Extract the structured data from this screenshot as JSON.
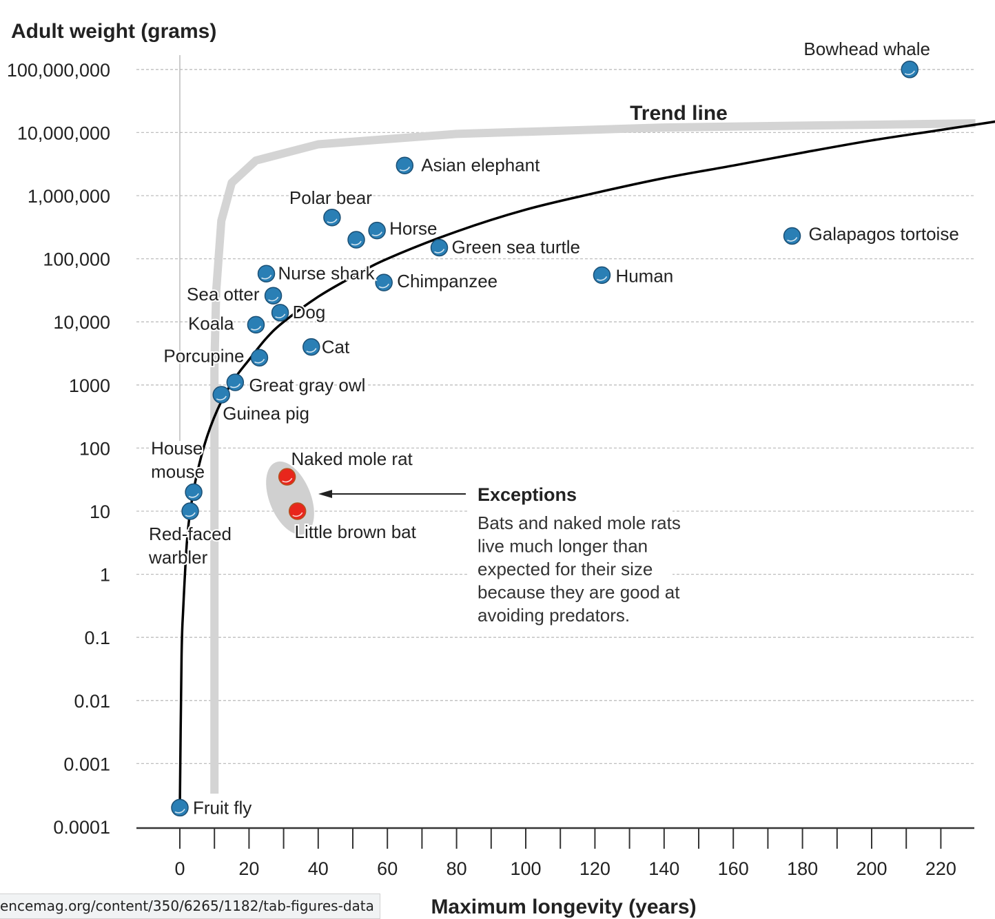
{
  "chart_data": {
    "type": "scatter",
    "ylabel": "Adult weight (grams)",
    "xlabel": "Maximum longevity (years)",
    "x_ticks": [
      0,
      20,
      40,
      60,
      80,
      100,
      120,
      140,
      160,
      180,
      200,
      220
    ],
    "xlim": [
      0,
      230
    ],
    "y_scale": "log",
    "ylim": [
      0.0001,
      100000000
    ],
    "y_ticks": [
      {
        "value": 0.0001,
        "label": "0.0001"
      },
      {
        "value": 0.001,
        "label": "0.001"
      },
      {
        "value": 0.01,
        "label": "0.01"
      },
      {
        "value": 0.1,
        "label": "0.1"
      },
      {
        "value": 1,
        "label": "1"
      },
      {
        "value": 10,
        "label": "10"
      },
      {
        "value": 100,
        "label": "100"
      },
      {
        "value": 1000,
        "label": "1000"
      },
      {
        "value": 10000,
        "label": "10,000"
      },
      {
        "value": 100000,
        "label": "100,000"
      },
      {
        "value": 1000000,
        "label": "1,000,000"
      },
      {
        "value": 10000000,
        "label": "10,000,000"
      },
      {
        "value": 100000000,
        "label": "100,000,000"
      }
    ],
    "grid": "horizontal-dashed",
    "series": [
      {
        "color": "#2a7fb5",
        "points": [
          {
            "label": "Fruit fly",
            "x": 0,
            "y": 0.0002
          },
          {
            "label": "Red-faced warbler",
            "x": 3,
            "y": 10
          },
          {
            "label": "House mouse",
            "x": 4,
            "y": 20
          },
          {
            "label": "Guinea pig",
            "x": 12,
            "y": 700
          },
          {
            "label": "Great gray owl",
            "x": 16,
            "y": 1100
          },
          {
            "label": "Porcupine",
            "x": 23,
            "y": 2700
          },
          {
            "label": "Koala",
            "x": 22,
            "y": 9000
          },
          {
            "label": "Sea otter",
            "x": 27,
            "y": 26000
          },
          {
            "label": "Dog",
            "x": 29,
            "y": 14000
          },
          {
            "label": "Nurse shark",
            "x": 25,
            "y": 58000
          },
          {
            "label": "Cat",
            "x": 38,
            "y": 4000
          },
          {
            "label": "Polar bear",
            "x": 44,
            "y": 450000
          },
          {
            "label": "Horse",
            "x": 57,
            "y": 280000
          },
          {
            "label": "",
            "x": 51,
            "y": 200000
          },
          {
            "label": "Chimpanzee",
            "x": 59,
            "y": 42000
          },
          {
            "label": "Green sea turtle",
            "x": 75,
            "y": 150000
          },
          {
            "label": "Asian elephant",
            "x": 65,
            "y": 3000000
          },
          {
            "label": "Human",
            "x": 122,
            "y": 55000
          },
          {
            "label": "Galapagos tortoise",
            "x": 177,
            "y": 230000
          },
          {
            "label": "Bowhead whale",
            "x": 211,
            "y": 100000000
          }
        ]
      },
      {
        "color": "#e8261c",
        "points": [
          {
            "label": "Naked mole rat",
            "x": 31,
            "y": 35
          },
          {
            "label": "Little brown bat",
            "x": 34,
            "y": 10
          }
        ]
      }
    ],
    "annotations": {
      "trend_line_label": "Trend line",
      "exceptions_title": "Exceptions",
      "exceptions_text": [
        "Bats and naked mole rats",
        "live much longer than",
        "expected for their size",
        "because they are good at",
        "avoiding predators."
      ]
    },
    "trend_line_points": [
      [
        0,
        0.0002
      ],
      [
        0.5,
        0.05
      ],
      [
        1,
        0.3
      ],
      [
        2,
        3
      ],
      [
        3,
        10
      ],
      [
        5,
        40
      ],
      [
        8,
        160
      ],
      [
        12,
        550
      ],
      [
        16,
        1300
      ],
      [
        20,
        2500
      ],
      [
        25,
        5500
      ],
      [
        30,
        10000
      ],
      [
        40,
        25000
      ],
      [
        50,
        52000
      ],
      [
        60,
        100000
      ],
      [
        80,
        270000
      ],
      [
        100,
        600000
      ],
      [
        120,
        1100000
      ],
      [
        140,
        1900000
      ],
      [
        160,
        3000000
      ],
      [
        180,
        4800000
      ],
      [
        200,
        7500000
      ],
      [
        220,
        11000000
      ],
      [
        236,
        15000000
      ]
    ],
    "gray_guide_points": [
      [
        10,
        0.0002
      ],
      [
        10,
        50
      ],
      [
        10,
        2000
      ],
      [
        10.5,
        30000
      ],
      [
        12,
        400000
      ],
      [
        15,
        1600000
      ],
      [
        22,
        3600000
      ],
      [
        40,
        6500000
      ],
      [
        80,
        9500000
      ],
      [
        140,
        12000000
      ],
      [
        230,
        14000000
      ]
    ]
  },
  "status_url": "encemag.org/content/350/6265/1182/tab-figures-data",
  "colors": {
    "point_blue": "#2a7fb5",
    "point_red": "#e8261c",
    "gray_guide": "#d4d4d4",
    "grid": "#bdbdbd",
    "text": "#222222"
  }
}
